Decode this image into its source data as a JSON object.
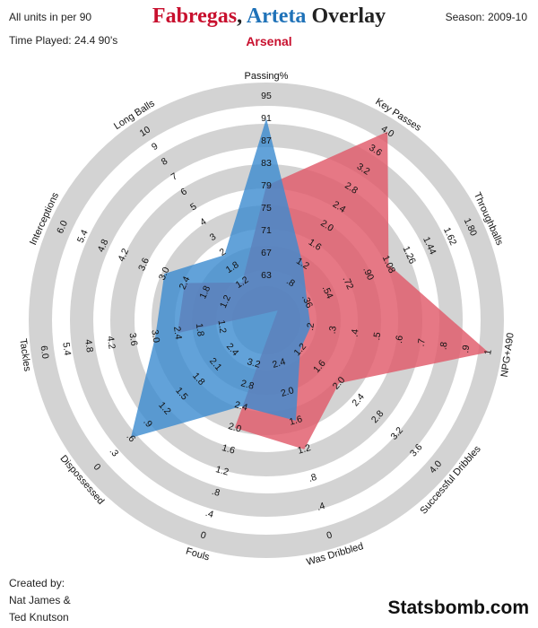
{
  "header": {
    "units_note": "All units in per 90",
    "time_played": "Time Played: 24.4 90's",
    "season": "Season: 2009-10",
    "title_part1": "Fabregas",
    "title_sep": ", ",
    "title_part2": "Arteta",
    "title_part3": " Overlay",
    "subtitle": "Arsenal"
  },
  "footer": {
    "credit_line1": "Created by:",
    "credit_line2": "Nat James &",
    "credit_line3": "Ted Knutson",
    "brand": "Statsbomb.com"
  },
  "colors": {
    "fabregas": "#c8102e",
    "arteta": "#1f72b8",
    "fabregas_fill": "#e05a6a",
    "arteta_fill": "#3b8bd0",
    "rings": "#d3d3d3"
  },
  "chart_data": {
    "type": "radar",
    "title": "Fabregas, Arteta Overlay",
    "subtitle": "Arsenal",
    "axes": [
      {
        "name": "Passing%",
        "ticks": [
          "63",
          "67",
          "71",
          "75",
          "79",
          "83",
          "87",
          "91",
          "95"
        ]
      },
      {
        "name": "Key Passes",
        "ticks": [
          ".8",
          "1.2",
          "1.6",
          "2.0",
          "2.4",
          "2.8",
          "3.2",
          "3.6",
          "4.0"
        ]
      },
      {
        "name": "Throughballs",
        "ticks": [
          ".36",
          ".54",
          ".72",
          ".90",
          "1.08",
          "1.26",
          "1.44",
          "1.62",
          "1.80"
        ]
      },
      {
        "name": "NPG+A90",
        "ticks": [
          ".2",
          ".3",
          ".4",
          ".5",
          ".6",
          ".7",
          ".8",
          ".9",
          "1"
        ]
      },
      {
        "name": "Successful Dribbles",
        "ticks": [
          "1.2",
          "1.6",
          "2.0",
          "2.4",
          "2.8",
          "3.2",
          "3.6",
          "4.0"
        ]
      },
      {
        "name": "Was Dribbled",
        "ticks": [
          "2.4",
          "2.0",
          "1.6",
          "1.2",
          ".8",
          ".4",
          "0"
        ]
      },
      {
        "name": "Fouls",
        "ticks": [
          "3.2",
          "2.8",
          "2.4",
          "2.0",
          "1.6",
          "1.2",
          ".8",
          ".4",
          "0"
        ]
      },
      {
        "name": "Dispossessed",
        "ticks": [
          "2.4",
          "2.1",
          "1.8",
          "1.5",
          "1.2",
          ".9",
          ".6",
          ".3",
          "0"
        ]
      },
      {
        "name": "Tackles",
        "ticks": [
          "1.2",
          "1.8",
          "2.4",
          "3.0",
          "3.6",
          "4.2",
          "4.8",
          "5.4",
          "6.0"
        ]
      },
      {
        "name": "Interceptions",
        "ticks": [
          "1.2",
          "1.8",
          "2.4",
          "3.0",
          "3.6",
          "4.2",
          "4.8",
          "5.4",
          "6.0"
        ]
      },
      {
        "name": "Long Balls",
        "ticks": [
          "1.2",
          "1.8",
          "2",
          "3",
          "4",
          "5",
          "6",
          "7",
          "8",
          "9",
          "10"
        ]
      }
    ],
    "series": [
      {
        "name": "Fabregas",
        "values": [
          79,
          4.0,
          1.08,
          1.0,
          2.0,
          1.2,
          2.0,
          3.2,
          2.4,
          2.4,
          1.2
        ]
      },
      {
        "name": "Arteta",
        "values": [
          91,
          1.2,
          0.36,
          0.2,
          1.2,
          1.6,
          2.4,
          0.6,
          3.0,
          3.0,
          2.8
        ]
      }
    ]
  }
}
